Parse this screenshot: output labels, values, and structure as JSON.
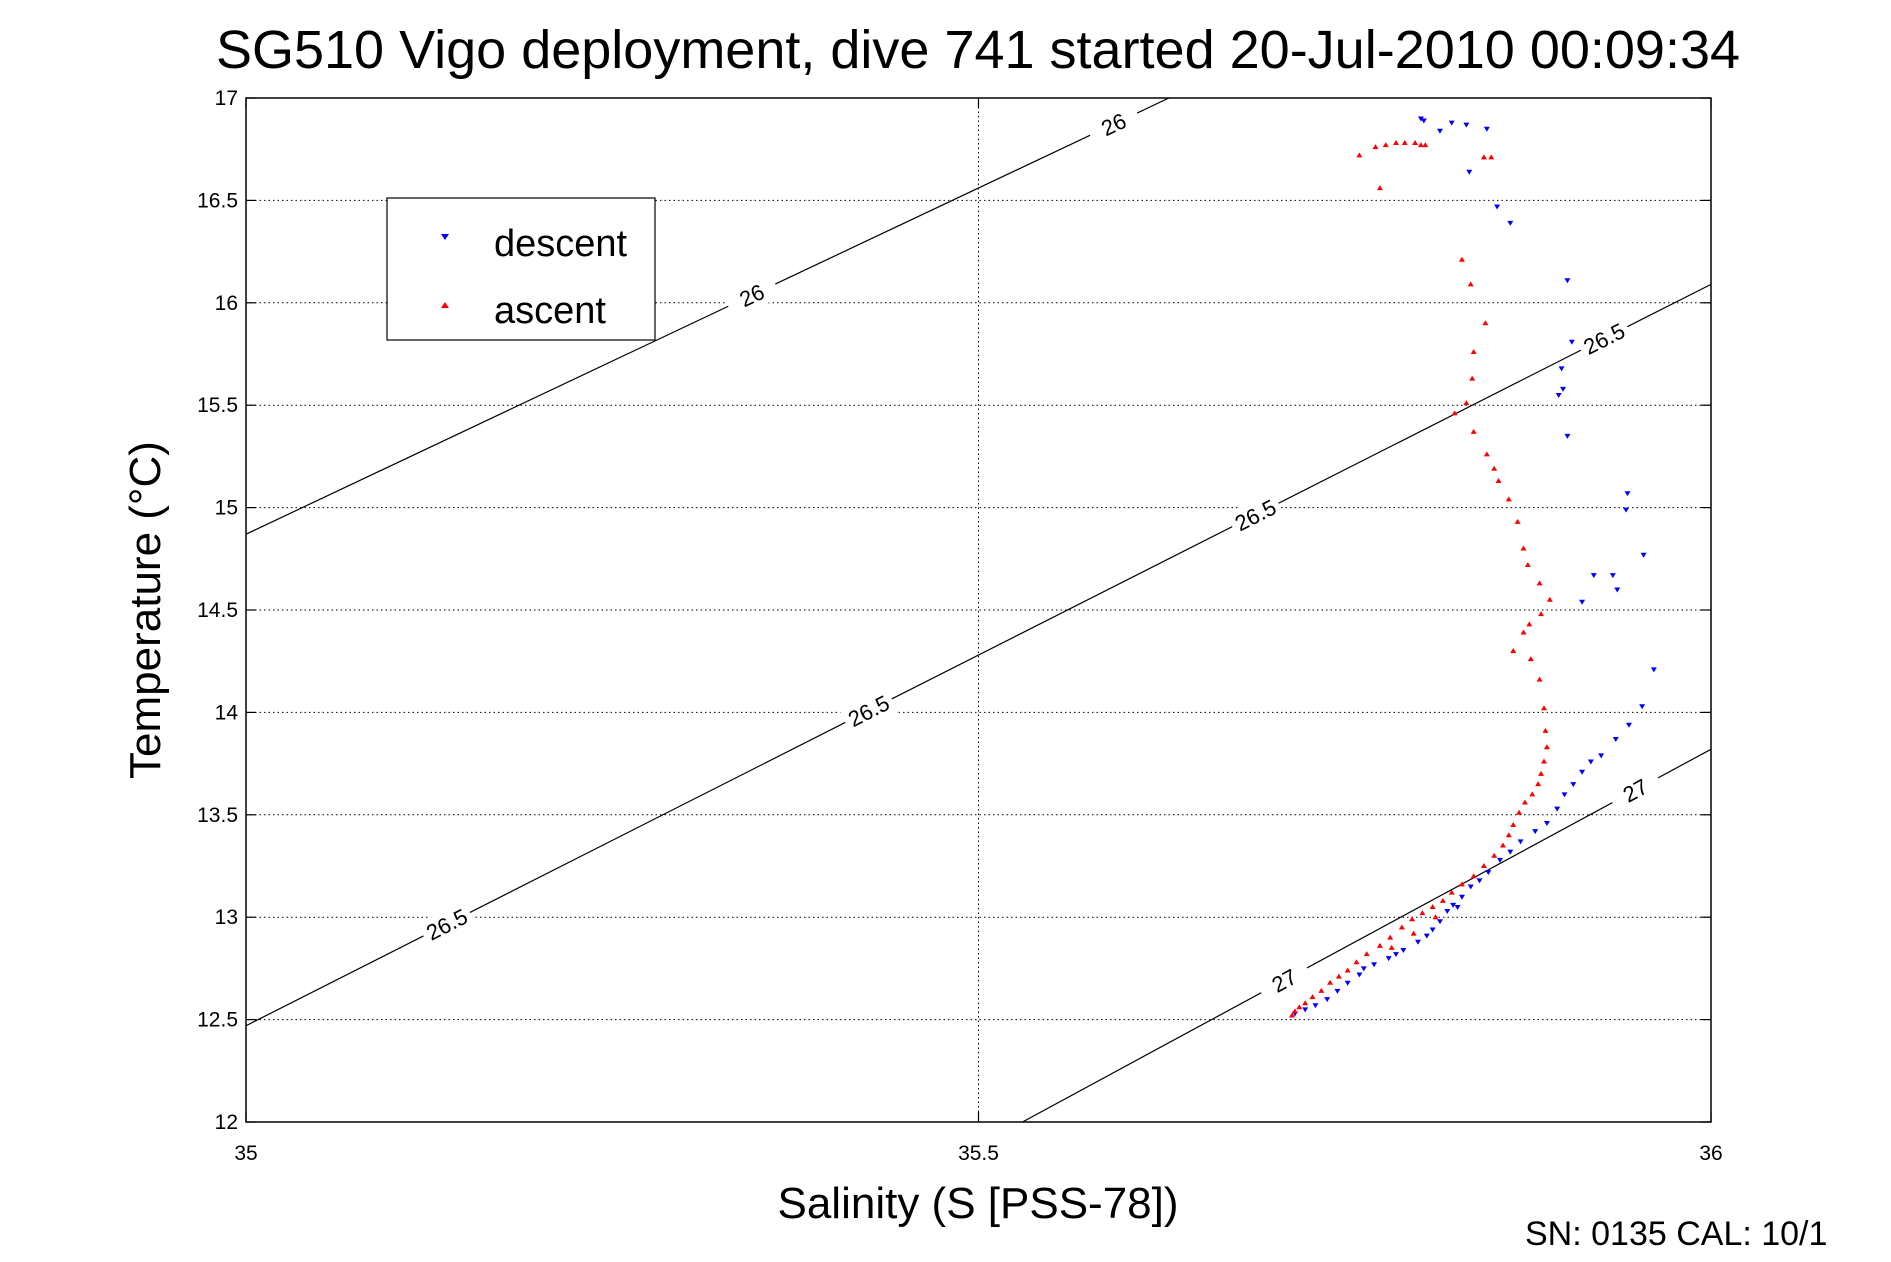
{
  "chart_data": {
    "type": "scatter",
    "title": "SG510 Vigo deployment, dive 741 started 20-Jul-2010 00:09:34",
    "xlabel": "Salinity (S [PSS-78])",
    "ylabel": "Temperature (°C)",
    "xlim": [
      35,
      36
    ],
    "ylim": [
      12,
      17
    ],
    "x_ticks": [
      "35",
      "35.5",
      "36"
    ],
    "y_ticks": [
      "12",
      "12.5",
      "13",
      "13.5",
      "14",
      "14.5",
      "15",
      "15.5",
      "16",
      "16.5",
      "17"
    ],
    "grid": true,
    "legend_position": "upper-left",
    "density_contours": [
      {
        "sigma": "26",
        "points": [
          [
            35,
            14.87
          ],
          [
            35.63,
            17
          ]
        ],
        "labels": [
          "26",
          "26"
        ]
      },
      {
        "sigma": "26.5",
        "points": [
          [
            35,
            12.47
          ],
          [
            36,
            16.09
          ]
        ],
        "labels": [
          "26.5",
          "26.5",
          "26.5",
          "26.5"
        ]
      },
      {
        "sigma": "27",
        "points": [
          [
            35.53,
            12
          ],
          [
            36,
            13.82
          ]
        ],
        "labels": [
          "27",
          "27"
        ]
      }
    ],
    "series": [
      {
        "name": "descent",
        "color": "#0000ff",
        "marker": "triangle-down",
        "points": [
          [
            35.802,
            16.9
          ],
          [
            35.804,
            16.89
          ],
          [
            35.815,
            16.84
          ],
          [
            35.823,
            16.88
          ],
          [
            35.833,
            16.87
          ],
          [
            35.847,
            16.85
          ],
          [
            35.835,
            16.64
          ],
          [
            35.854,
            16.47
          ],
          [
            35.863,
            16.39
          ],
          [
            35.902,
            16.11
          ],
          [
            35.905,
            15.81
          ],
          [
            35.898,
            15.68
          ],
          [
            35.899,
            15.58
          ],
          [
            35.896,
            15.55
          ],
          [
            35.902,
            15.35
          ],
          [
            35.943,
            15.07
          ],
          [
            35.942,
            14.99
          ],
          [
            35.954,
            14.77
          ],
          [
            35.92,
            14.67
          ],
          [
            35.933,
            14.67
          ],
          [
            35.936,
            14.6
          ],
          [
            35.912,
            14.54
          ],
          [
            35.961,
            14.21
          ],
          [
            35.953,
            14.03
          ],
          [
            35.944,
            13.94
          ],
          [
            35.935,
            13.87
          ],
          [
            35.925,
            13.79
          ],
          [
            35.918,
            13.76
          ],
          [
            35.912,
            13.71
          ],
          [
            35.906,
            13.65
          ],
          [
            35.9,
            13.6
          ],
          [
            35.895,
            13.53
          ],
          [
            35.888,
            13.46
          ],
          [
            35.88,
            13.42
          ],
          [
            35.87,
            13.37
          ],
          [
            35.863,
            13.32
          ],
          [
            35.856,
            13.28
          ],
          [
            35.848,
            13.22
          ],
          [
            35.842,
            13.18
          ],
          [
            35.836,
            13.15
          ],
          [
            35.83,
            13.1
          ],
          [
            35.824,
            13.06
          ],
          [
            35.82,
            13.03
          ],
          [
            35.815,
            12.98
          ],
          [
            35.81,
            12.94
          ],
          [
            35.806,
            12.91
          ],
          [
            35.8,
            12.88
          ],
          [
            35.79,
            12.84
          ],
          [
            35.78,
            12.8
          ],
          [
            35.77,
            12.77
          ],
          [
            35.76,
            12.72
          ],
          [
            35.752,
            12.68
          ],
          [
            35.745,
            12.64
          ],
          [
            35.738,
            12.6
          ],
          [
            35.73,
            12.57
          ],
          [
            35.723,
            12.55
          ],
          [
            35.716,
            12.53
          ],
          [
            35.763,
            12.75
          ],
          [
            35.785,
            12.82
          ],
          [
            35.827,
            13.05
          ]
        ]
      },
      {
        "name": "ascent",
        "color": "#ff0000",
        "marker": "triangle-up",
        "points": [
          [
            35.76,
            16.72
          ],
          [
            35.771,
            16.76
          ],
          [
            35.778,
            16.77
          ],
          [
            35.785,
            16.78
          ],
          [
            35.791,
            16.78
          ],
          [
            35.798,
            16.78
          ],
          [
            35.802,
            16.77
          ],
          [
            35.805,
            16.77
          ],
          [
            35.774,
            16.56
          ],
          [
            35.845,
            16.71
          ],
          [
            35.85,
            16.71
          ],
          [
            35.83,
            16.21
          ],
          [
            35.836,
            16.09
          ],
          [
            35.846,
            15.9
          ],
          [
            35.838,
            15.76
          ],
          [
            35.837,
            15.63
          ],
          [
            35.833,
            15.51
          ],
          [
            35.825,
            15.46
          ],
          [
            35.838,
            15.37
          ],
          [
            35.847,
            15.26
          ],
          [
            35.852,
            15.19
          ],
          [
            35.855,
            15.13
          ],
          [
            35.862,
            15.04
          ],
          [
            35.868,
            14.93
          ],
          [
            35.872,
            14.8
          ],
          [
            35.875,
            14.72
          ],
          [
            35.883,
            14.63
          ],
          [
            35.89,
            14.55
          ],
          [
            35.884,
            14.48
          ],
          [
            35.876,
            14.43
          ],
          [
            35.872,
            14.39
          ],
          [
            35.865,
            14.3
          ],
          [
            35.877,
            14.26
          ],
          [
            35.883,
            14.16
          ],
          [
            35.886,
            14.02
          ],
          [
            35.887,
            13.91
          ],
          [
            35.888,
            13.83
          ],
          [
            35.886,
            13.76
          ],
          [
            35.884,
            13.7
          ],
          [
            35.882,
            13.65
          ],
          [
            35.878,
            13.6
          ],
          [
            35.873,
            13.56
          ],
          [
            35.869,
            13.51
          ],
          [
            35.865,
            13.45
          ],
          [
            35.862,
            13.4
          ],
          [
            35.858,
            13.35
          ],
          [
            35.852,
            13.3
          ],
          [
            35.845,
            13.25
          ],
          [
            35.838,
            13.2
          ],
          [
            35.83,
            13.16
          ],
          [
            35.823,
            13.12
          ],
          [
            35.817,
            13.08
          ],
          [
            35.81,
            13.05
          ],
          [
            35.803,
            13.02
          ],
          [
            35.796,
            12.99
          ],
          [
            35.789,
            12.95
          ],
          [
            35.781,
            12.9
          ],
          [
            35.774,
            12.86
          ],
          [
            35.765,
            12.82
          ],
          [
            35.758,
            12.78
          ],
          [
            35.752,
            12.74
          ],
          [
            35.746,
            12.71
          ],
          [
            35.74,
            12.68
          ],
          [
            35.734,
            12.64
          ],
          [
            35.728,
            12.61
          ],
          [
            35.723,
            12.58
          ],
          [
            35.719,
            12.56
          ],
          [
            35.716,
            12.54
          ],
          [
            35.714,
            12.52
          ],
          [
            35.812,
            13.0
          ],
          [
            35.797,
            12.92
          ],
          [
            35.782,
            12.85
          ]
        ]
      }
    ]
  },
  "footer_text": "SN: 0135  CAL: 10/1"
}
